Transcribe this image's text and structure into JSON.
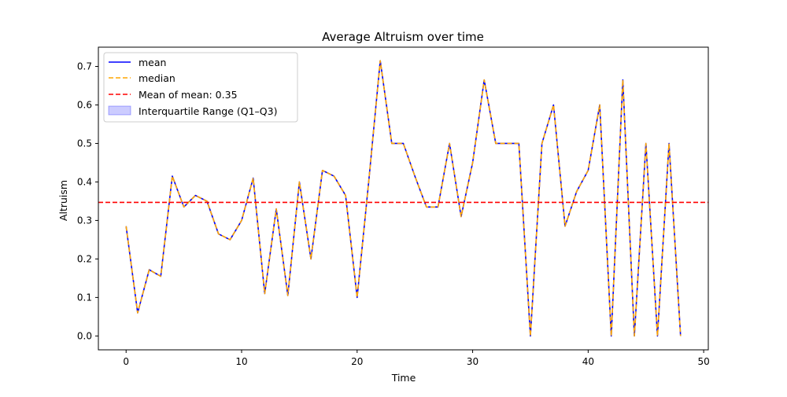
{
  "chart_data": {
    "type": "line",
    "title": "Average Altruism over time",
    "xlabel": "Time",
    "ylabel": "Altruism",
    "xlim": [
      -2.4,
      50.4
    ],
    "ylim": [
      -0.036,
      0.75
    ],
    "xticks": [
      0,
      10,
      20,
      30,
      40,
      50
    ],
    "yticks": [
      0.0,
      0.1,
      0.2,
      0.3,
      0.4,
      0.5,
      0.6,
      0.7
    ],
    "xtick_labels": [
      "0",
      "10",
      "20",
      "30",
      "40",
      "50"
    ],
    "ytick_labels": [
      "0.0",
      "0.1",
      "0.2",
      "0.3",
      "0.4",
      "0.5",
      "0.6",
      "0.7"
    ],
    "grid": false,
    "legend_position": "top-left",
    "x": [
      0,
      1,
      2,
      3,
      4,
      5,
      6,
      7,
      8,
      9,
      10,
      11,
      12,
      13,
      14,
      15,
      16,
      17,
      18,
      19,
      20,
      21,
      22,
      23,
      24,
      25,
      26,
      27,
      28,
      29,
      30,
      31,
      32,
      33,
      34,
      35,
      36,
      37,
      38,
      39,
      40,
      41,
      42,
      43,
      44,
      45,
      46,
      47,
      48
    ],
    "series": [
      {
        "name": "mean",
        "style": "solid",
        "color": "#0000ff",
        "values": [
          0.285,
          0.06,
          0.172,
          0.155,
          0.415,
          0.335,
          0.365,
          0.35,
          0.265,
          0.25,
          0.3,
          0.41,
          0.11,
          0.33,
          0.105,
          0.4,
          0.2,
          0.43,
          0.415,
          0.365,
          0.1,
          0.4,
          0.715,
          0.5,
          0.5,
          0.415,
          0.335,
          0.335,
          0.5,
          0.31,
          0.45,
          0.665,
          0.5,
          0.5,
          0.5,
          0.0,
          0.5,
          0.6,
          0.285,
          0.375,
          0.43,
          0.6,
          0.0,
          0.665,
          0.0,
          0.5,
          0.0,
          0.5,
          0.0
        ]
      },
      {
        "name": "median",
        "style": "dashed",
        "color": "#ffa500",
        "values": [
          0.285,
          0.06,
          0.172,
          0.155,
          0.415,
          0.335,
          0.365,
          0.35,
          0.265,
          0.25,
          0.3,
          0.41,
          0.11,
          0.33,
          0.105,
          0.4,
          0.2,
          0.43,
          0.415,
          0.365,
          0.1,
          0.4,
          0.715,
          0.5,
          0.5,
          0.415,
          0.335,
          0.335,
          0.5,
          0.31,
          0.45,
          0.665,
          0.5,
          0.5,
          0.5,
          0.0,
          0.5,
          0.6,
          0.285,
          0.375,
          0.43,
          0.6,
          0.0,
          0.665,
          0.0,
          0.5,
          0.0,
          0.5,
          0.0
        ]
      }
    ],
    "mean_line": {
      "name": "Mean of mean: 0.35",
      "value": 0.347,
      "style": "dashed",
      "color": "#ff0000"
    },
    "iqr": {
      "name": "Interquartile Range (Q1–Q3)",
      "color": "#0000ff"
    }
  }
}
